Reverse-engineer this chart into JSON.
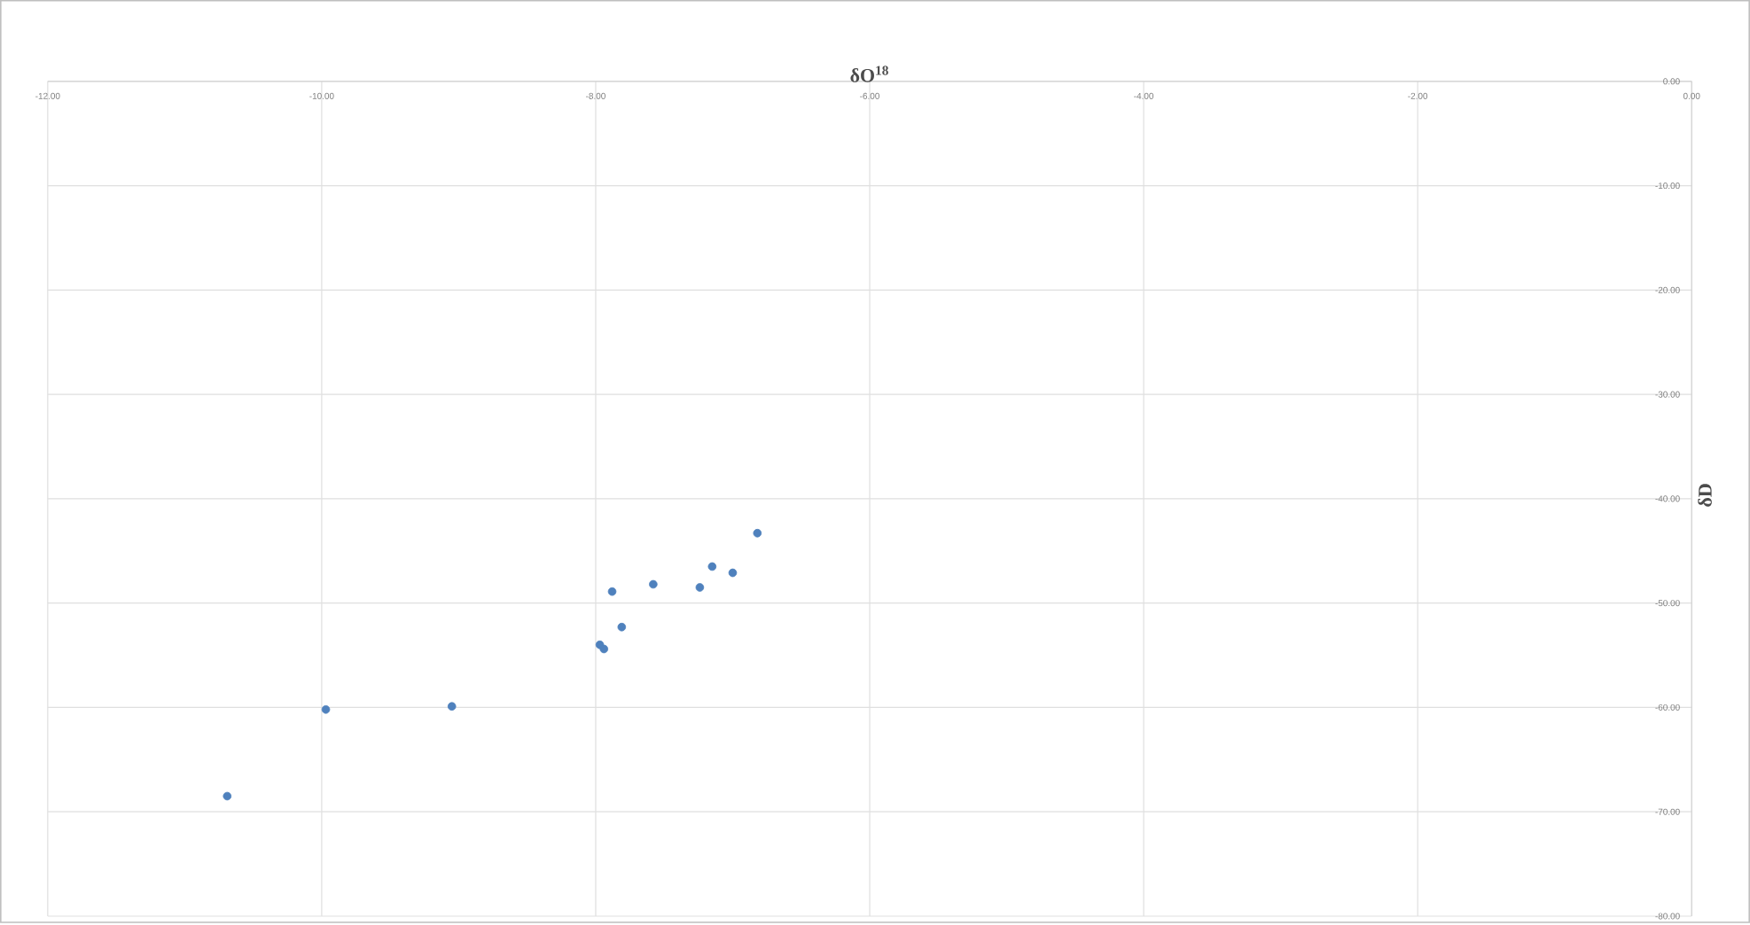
{
  "chart_data": {
    "type": "scatter",
    "xlabel": "δO$^{18}$",
    "ylabel": "δD",
    "x": [
      -10.69,
      -9.97,
      -9.05,
      -7.97,
      -7.94,
      -7.88,
      -7.81,
      -7.58,
      -7.24,
      -7.15,
      -7.0,
      -6.82
    ],
    "series": [
      {
        "color": "#4f81bd",
        "values": [
          -68.5,
          -60.2,
          -59.9,
          -54.0,
          -54.4,
          -48.9,
          -52.3,
          -48.2,
          -48.5,
          -46.5,
          -47.1,
          -43.3
        ]
      }
    ],
    "xlim": [
      -12,
      0
    ],
    "ylim": [
      -80,
      0
    ],
    "xticks": [
      {
        "value": -12,
        "label": "-12.00"
      },
      {
        "value": -10,
        "label": "-10.00"
      },
      {
        "value": -8,
        "label": "-8.00"
      },
      {
        "value": -6,
        "label": "-6.00"
      },
      {
        "value": -4,
        "label": "-4.00"
      },
      {
        "value": -2,
        "label": "-2.00"
      },
      {
        "value": 0,
        "label": "0.00"
      }
    ],
    "yticks": [
      {
        "value": 0,
        "label": "0.00"
      },
      {
        "value": -10,
        "label": "-10.00"
      },
      {
        "value": -20,
        "label": "-20.00"
      },
      {
        "value": -30,
        "label": "-30.00"
      },
      {
        "value": -40,
        "label": "-40.00"
      },
      {
        "value": -50,
        "label": "-50.00"
      },
      {
        "value": -60,
        "label": "-60.00"
      },
      {
        "value": -70,
        "label": "-70.00"
      },
      {
        "value": -80,
        "label": "-80.00"
      }
    ],
    "grid": true,
    "marker": "circle"
  }
}
